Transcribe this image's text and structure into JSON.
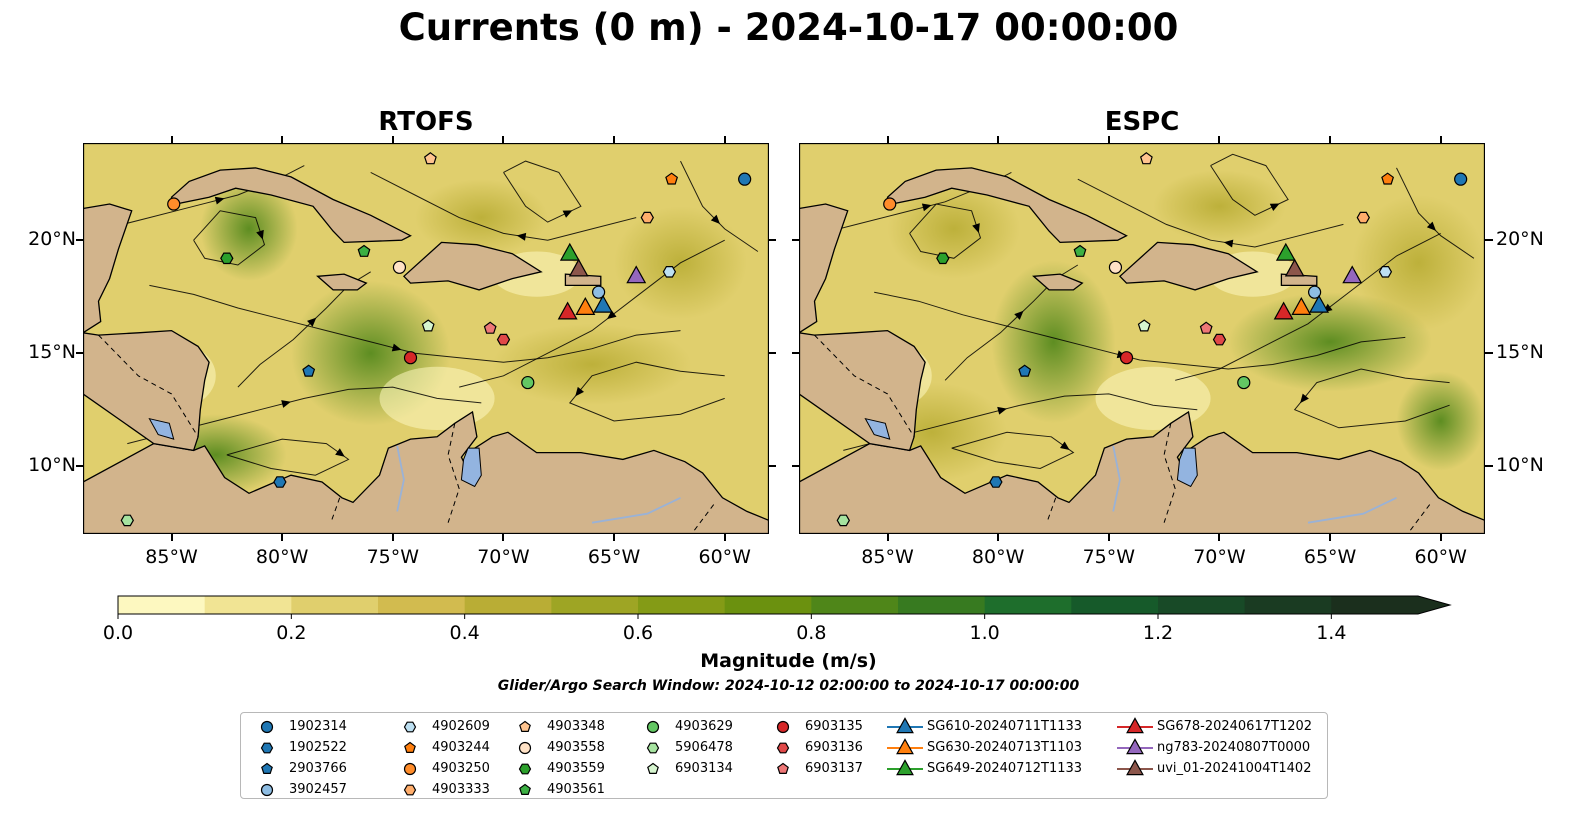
{
  "title": "Currents (0 m) - 2024-10-17 00:00:00",
  "panels": [
    {
      "title": "RTOFS"
    },
    {
      "title": "ESPC"
    }
  ],
  "axes": {
    "lon_labels": [
      "85°W",
      "80°W",
      "75°W",
      "70°W",
      "65°W",
      "60°W"
    ],
    "lon_values": [
      -85,
      -80,
      -75,
      -70,
      -65,
      -60
    ],
    "lat_labels": [
      "20°N",
      "15°N",
      "10°N"
    ],
    "lat_values": [
      20,
      15,
      10
    ],
    "lon_range": [
      -89,
      -58
    ],
    "lat_range": [
      7,
      24.3
    ]
  },
  "colorbar": {
    "label": "Magnitude (m/s)",
    "ticks": [
      "0.0",
      "0.2",
      "0.4",
      "0.6",
      "0.8",
      "1.0",
      "1.2",
      "1.4"
    ],
    "tick_values": [
      0,
      0.2,
      0.4,
      0.6,
      0.8,
      1.0,
      1.2,
      1.4
    ],
    "range": [
      0,
      1.5
    ],
    "extend": "max",
    "colors": [
      "#fdf8c0",
      "#f1e494",
      "#e0cf6d",
      "#d2bb4f",
      "#b9ad35",
      "#9ea524",
      "#849b16",
      "#6b910f",
      "#4f8619",
      "#377a20",
      "#1e6e2c",
      "#165a2a",
      "#184a27",
      "#1a3b22",
      "#1b2f1d"
    ]
  },
  "search_window": "Glider/Argo Search Window: 2024-10-12 02:00:00 to 2024-10-17 00:00:00",
  "colors": {
    "land": "#d2b48c",
    "lake": "#93b4e0",
    "river": "#9ab2d6"
  },
  "legend": {
    "columns": [
      [
        {
          "label": "1902314",
          "marker": "circle",
          "color": "#1f77b4"
        },
        {
          "label": "1902522",
          "marker": "hexagon",
          "color": "#1f77b4"
        },
        {
          "label": "2903766",
          "marker": "pentagon",
          "color": "#1f77b4"
        },
        {
          "label": "3902457",
          "marker": "circle",
          "color": "#8ebde3"
        }
      ],
      [
        {
          "label": "4902609",
          "marker": "hexagon",
          "color": "#bde0f2"
        },
        {
          "label": "4903244",
          "marker": "pentagon",
          "color": "#ff7f0e"
        },
        {
          "label": "4903250",
          "marker": "circle",
          "color": "#ff8c2a"
        },
        {
          "label": "4903333",
          "marker": "hexagon",
          "color": "#ffad6b"
        }
      ],
      [
        {
          "label": "4903348",
          "marker": "pentagon",
          "color": "#ffc48f"
        },
        {
          "label": "4903558",
          "marker": "circle",
          "color": "#ffe2c6"
        },
        {
          "label": "4903559",
          "marker": "hexagon",
          "color": "#2ca02c"
        },
        {
          "label": "4903561",
          "marker": "pentagon",
          "color": "#3cb043"
        }
      ],
      [
        {
          "label": "4903629",
          "marker": "circle",
          "color": "#63c763"
        },
        {
          "label": "5906478",
          "marker": "hexagon",
          "color": "#a6e3a0"
        },
        {
          "label": "6903134",
          "marker": "pentagon",
          "color": "#d6f5cf"
        }
      ],
      [
        {
          "label": "6903135",
          "marker": "circle",
          "color": "#d62728"
        },
        {
          "label": "6903136",
          "marker": "hexagon",
          "color": "#e04848"
        },
        {
          "label": "6903137",
          "marker": "pentagon",
          "color": "#ee7777"
        }
      ],
      [
        {
          "label": "SG610-20240711T1133",
          "marker": "triangle",
          "color": "#1f77b4",
          "line": true
        },
        {
          "label": "SG630-20240713T1103",
          "marker": "triangle",
          "color": "#ff7f0e",
          "line": true
        },
        {
          "label": "SG649-20240712T1133",
          "marker": "triangle",
          "color": "#2ca02c",
          "line": true
        }
      ],
      [
        {
          "label": "SG678-20240617T1202",
          "marker": "triangle",
          "color": "#d62728",
          "line": true
        },
        {
          "label": "ng783-20240807T0000",
          "marker": "triangle",
          "color": "#9467bd",
          "line": true
        },
        {
          "label": "uvi_01-20241004T1402",
          "marker": "triangle",
          "color": "#8c564b",
          "line": true
        }
      ]
    ]
  },
  "markers": [
    {
      "id": "1902314",
      "marker": "circle",
      "color": "#1f77b4",
      "lon": -59.1,
      "lat": 22.7
    },
    {
      "id": "1902522",
      "marker": "hexagon",
      "color": "#1f77b4",
      "lon": -80.1,
      "lat": 9.3
    },
    {
      "id": "2903766",
      "marker": "pentagon",
      "color": "#1f77b4",
      "lon": -78.8,
      "lat": 14.2
    },
    {
      "id": "3902457",
      "marker": "circle",
      "color": "#8ebde3",
      "lon": -65.7,
      "lat": 17.7
    },
    {
      "id": "4902609",
      "marker": "hexagon",
      "color": "#bde0f2",
      "lon": -62.5,
      "lat": 18.6
    },
    {
      "id": "4903244",
      "marker": "pentagon",
      "color": "#ff7f0e",
      "lon": -62.4,
      "lat": 22.7
    },
    {
      "id": "4903250",
      "marker": "circle",
      "color": "#ff8c2a",
      "lon": -84.9,
      "lat": 21.6
    },
    {
      "id": "4903333",
      "marker": "hexagon",
      "color": "#ffad6b",
      "lon": -63.5,
      "lat": 21.0
    },
    {
      "id": "4903348",
      "marker": "pentagon",
      "color": "#ffc48f",
      "lon": -73.3,
      "lat": 23.6
    },
    {
      "id": "4903558",
      "marker": "circle",
      "color": "#ffe2c6",
      "lon": -74.7,
      "lat": 18.8
    },
    {
      "id": "4903559",
      "marker": "hexagon",
      "color": "#2ca02c",
      "lon": -82.5,
      "lat": 19.2
    },
    {
      "id": "4903561",
      "marker": "pentagon",
      "color": "#3cb043",
      "lon": -76.3,
      "lat": 19.5
    },
    {
      "id": "4903629",
      "marker": "circle",
      "color": "#63c763",
      "lon": -68.9,
      "lat": 13.7
    },
    {
      "id": "5906478",
      "marker": "hexagon",
      "color": "#a6e3a0",
      "lon": -87.0,
      "lat": 7.6
    },
    {
      "id": "6903134",
      "marker": "pentagon",
      "color": "#d6f5cf",
      "lon": -73.4,
      "lat": 16.2
    },
    {
      "id": "6903135",
      "marker": "circle",
      "color": "#d62728",
      "lon": -74.2,
      "lat": 14.8
    },
    {
      "id": "6903136",
      "marker": "hexagon",
      "color": "#e04848",
      "lon": -70.0,
      "lat": 15.6
    },
    {
      "id": "6903137",
      "marker": "pentagon",
      "color": "#ee7777",
      "lon": -70.6,
      "lat": 16.1
    },
    {
      "id": "SG610-20240711T1133",
      "marker": "triangle",
      "color": "#1f77b4",
      "lon": -65.5,
      "lat": 17.1
    },
    {
      "id": "SG630-20240713T1103",
      "marker": "triangle",
      "color": "#ff7f0e",
      "lon": -66.3,
      "lat": 17.0
    },
    {
      "id": "SG649-20240712T1133",
      "marker": "triangle",
      "color": "#2ca02c",
      "lon": -67.0,
      "lat": 19.4
    },
    {
      "id": "SG678-20240617T1202",
      "marker": "triangle",
      "color": "#d62728",
      "lon": -67.1,
      "lat": 16.8
    },
    {
      "id": "ng783-20240807T0000",
      "marker": "triangle",
      "color": "#9467bd",
      "lon": -64.0,
      "lat": 18.4
    },
    {
      "id": "uvi_01-20241004T1402",
      "marker": "triangle",
      "color": "#8c564b",
      "lon": -66.6,
      "lat": 18.7
    }
  ]
}
